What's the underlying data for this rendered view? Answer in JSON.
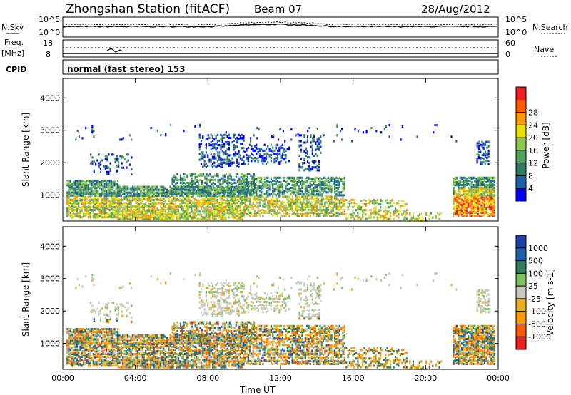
{
  "header": {
    "station": "Zhongshan Station (fitACF)",
    "beam": "Beam 07",
    "date": "28/Aug/2012"
  },
  "top_panel": {
    "left_label": "N.Sky",
    "right_label": "N.Search",
    "left_ticks": [
      "10^5",
      "10^0"
    ],
    "right_ticks": [
      "10^5",
      "10^0"
    ]
  },
  "freq_panel": {
    "left_label_1": "Freq.",
    "left_label_2": "[MHz]",
    "right_label": "Nave",
    "left_ticks": [
      "18",
      "8"
    ],
    "right_ticks": [
      "60",
      "0"
    ]
  },
  "cpid": {
    "label": "CPID",
    "text": "normal (fast stereo) 153"
  },
  "colors": {
    "power": [
      "#0000ff",
      "#1f5fa8",
      "#2f7d5e",
      "#4fa35a",
      "#8cc84b",
      "#e8e000",
      "#ff9900",
      "#ff5a00",
      "#ee1f1f"
    ],
    "velocity": [
      "#ee1f1f",
      "#ff5a00",
      "#ff9900",
      "#e6b020",
      "#c8c8bc",
      "#7fc05f",
      "#2f7d5e",
      "#1f5fa8",
      "#1f3fa8"
    ]
  },
  "chart_data": [
    {
      "type": "heatmap",
      "name": "power-panel",
      "ylabel": "Slant Range [km]",
      "xlabel": "",
      "xlim": [
        0,
        24
      ],
      "ylim": [
        200,
        4600
      ],
      "yticks": [
        "1000",
        "2000",
        "3000",
        "4000"
      ],
      "yticks_values": [
        1000,
        2000,
        3000,
        4000
      ],
      "colorbar": {
        "label": "Power [dB]",
        "ticks": [
          "4",
          "8",
          "12",
          "16",
          "20",
          "24",
          "28"
        ],
        "range": [
          0,
          32
        ]
      }
    },
    {
      "type": "heatmap",
      "name": "velocity-panel",
      "ylabel": "Slant Range [km]",
      "xlabel": "Time UT",
      "xlim": [
        0,
        24
      ],
      "ylim": [
        200,
        4600
      ],
      "xticks": [
        "00:00",
        "04:00",
        "08:00",
        "12:00",
        "16:00",
        "20:00",
        "00:00"
      ],
      "xticks_values": [
        0,
        4,
        8,
        12,
        16,
        20,
        24
      ],
      "yticks": [
        "1000",
        "2000",
        "3000",
        "4000"
      ],
      "yticks_values": [
        1000,
        2000,
        3000,
        4000
      ],
      "colorbar": {
        "label": "Velocity [m s-1]",
        "ticks": [
          "1000",
          "500",
          "100",
          "25",
          "-25",
          "-100",
          "-500",
          "-1000"
        ]
      }
    }
  ]
}
